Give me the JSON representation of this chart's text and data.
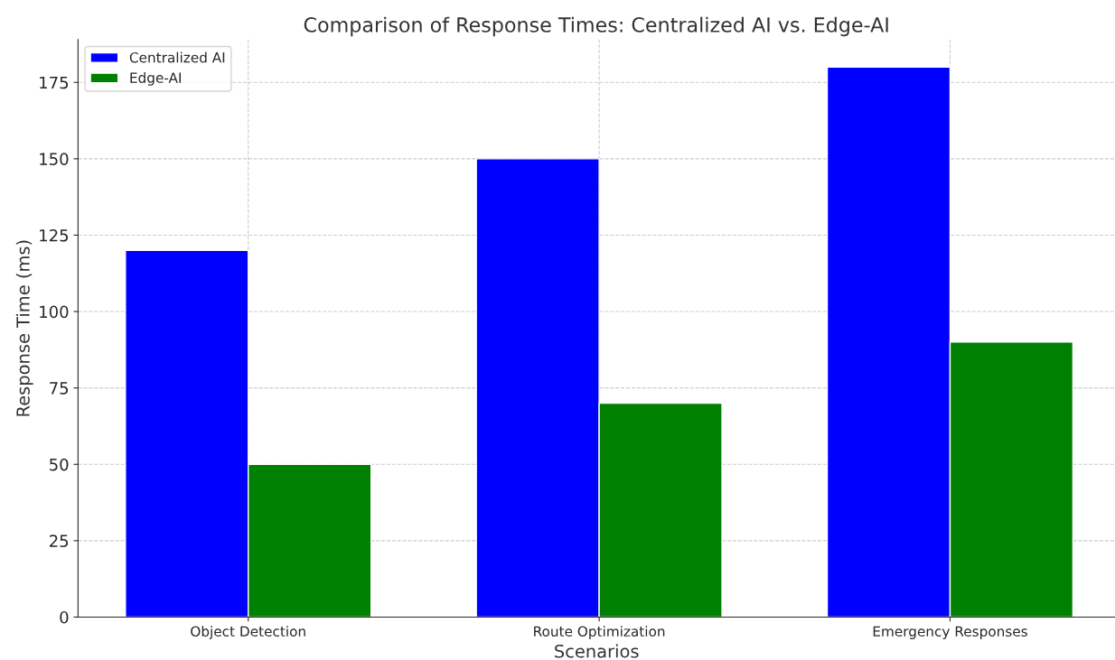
{
  "chart_data": {
    "type": "bar",
    "title": "Comparison of Response Times: Centralized AI vs. Edge-AI",
    "xlabel": "Scenarios",
    "ylabel": "Response Time (ms)",
    "categories": [
      "Object Detection",
      "Route Optimization",
      "Emergency Responses"
    ],
    "series": [
      {
        "name": "Centralized AI",
        "color": "#0000ff",
        "values": [
          120,
          150,
          180
        ]
      },
      {
        "name": "Edge-AI",
        "color": "#008000",
        "values": [
          50,
          70,
          90
        ]
      }
    ],
    "ylim": [
      0,
      189
    ],
    "yticks": [
      0,
      25,
      50,
      75,
      100,
      125,
      150,
      175
    ],
    "grid": true,
    "legend": "top left"
  }
}
